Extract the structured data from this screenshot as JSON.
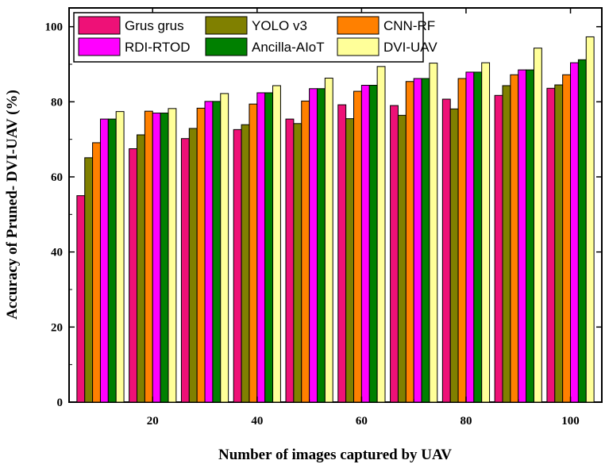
{
  "chart_data": {
    "type": "bar",
    "xlabel": "Number of images captured by UAV",
    "ylabel": "Accuracy of Pruned- DVI-UAV (%)",
    "ylim": [
      0,
      105
    ],
    "xlim": [
      4,
      106
    ],
    "x": [
      10,
      20,
      30,
      40,
      50,
      60,
      70,
      80,
      90,
      100
    ],
    "xticks": [
      20,
      40,
      60,
      80,
      100
    ],
    "yticks": [
      0,
      20,
      40,
      60,
      80,
      100
    ],
    "legend_position": "top-left",
    "series": [
      {
        "name": "Grus grus",
        "color": "#ee1177",
        "values": [
          55.0,
          67.5,
          70.2,
          72.6,
          75.4,
          79.2,
          79.0,
          80.7,
          81.7,
          83.6
        ]
      },
      {
        "name": "YOLO v3",
        "color": "#808000",
        "values": [
          65.1,
          71.2,
          72.9,
          73.9,
          74.2,
          75.5,
          76.4,
          78.1,
          84.3,
          84.5
        ]
      },
      {
        "name": "CNN-RF",
        "color": "#ff8000",
        "values": [
          69.1,
          77.5,
          78.3,
          79.4,
          80.2,
          82.8,
          85.4,
          86.2,
          87.2,
          87.2
        ]
      },
      {
        "name": "RDI-RTOD",
        "color": "#ff00ff",
        "values": [
          75.4,
          77.0,
          80.1,
          82.4,
          83.5,
          84.4,
          86.2,
          87.9,
          88.5,
          90.4
        ]
      },
      {
        "name": "Ancilla-AIoT",
        "color": "#008000",
        "values": [
          75.4,
          77.0,
          80.1,
          82.4,
          83.5,
          84.4,
          86.2,
          87.9,
          88.5,
          91.2
        ]
      },
      {
        "name": "DVI-UAV",
        "color": "#ffff99",
        "values": [
          77.4,
          78.2,
          82.2,
          84.3,
          86.3,
          89.4,
          90.3,
          90.4,
          94.3,
          97.3
        ]
      }
    ]
  }
}
